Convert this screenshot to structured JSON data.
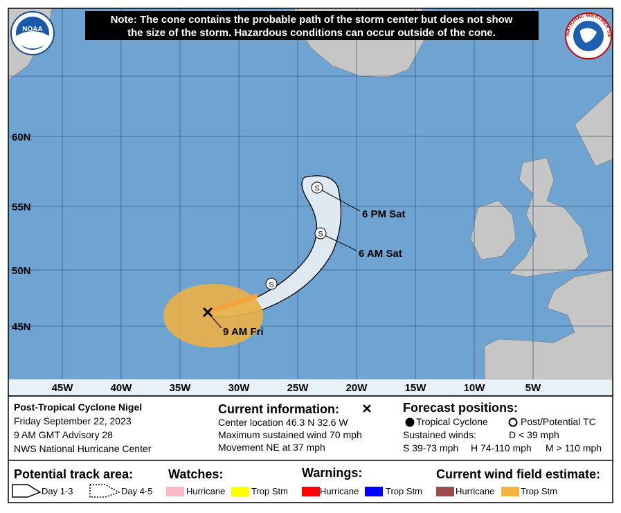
{
  "note": [
    "Note: The cone contains the probable path of the storm center but does not show",
    "the size of the storm. Hazardous conditions can occur outside of the cone."
  ],
  "logos": {
    "left": "NOAA",
    "right": "NATIONAL WEATHER SERVICE"
  },
  "map": {
    "lat_labels": [
      "60N",
      "55N",
      "50N",
      "45N"
    ],
    "lon_labels": [
      "45W",
      "40W",
      "35W",
      "30W",
      "25W",
      "20W",
      "15W",
      "10W",
      "5W"
    ],
    "track": [
      {
        "label": "9 AM Fri"
      },
      {
        "symbol": "S"
      },
      {
        "symbol": "S",
        "label": "6 AM Sat"
      },
      {
        "symbol": "S",
        "label": "6 PM Sat"
      }
    ]
  },
  "info": {
    "storm": [
      "Post-Tropical Cyclone Nigel",
      "Friday September 22, 2023",
      "9 AM GMT Advisory 28",
      "NWS National Hurricane Center"
    ],
    "current": {
      "title": "Current information:",
      "lines": [
        "Center location 46.3 N 32.6 W",
        "Maximum sustained wind 70 mph",
        "Movement NE at 37 mph"
      ]
    },
    "forecast": {
      "title": "Forecast positions:",
      "tropical": "Tropical Cyclone",
      "post": "Post/Potential TC",
      "winds": "Sustained winds:",
      "d": "D < 39 mph",
      "s": "S 39-73 mph",
      "h": "H 74-110 mph",
      "m": "M > 110 mph"
    }
  },
  "legend": {
    "track_area": {
      "title": "Potential track area:",
      "day13": "Day 1-3",
      "day45": "Day 4-5"
    },
    "watches": {
      "title": "Watches:",
      "hurricane": "Hurricane",
      "tropical_storm": "Trop Stm"
    },
    "warnings": {
      "title": "Warnings:",
      "hurricane": "Hurricane",
      "tropical_storm": "Trop Stm"
    },
    "wind_field": {
      "title": "Current wind field estimate:",
      "hurricane": "Hurricane",
      "tropical_storm": "Trop Stm"
    }
  }
}
